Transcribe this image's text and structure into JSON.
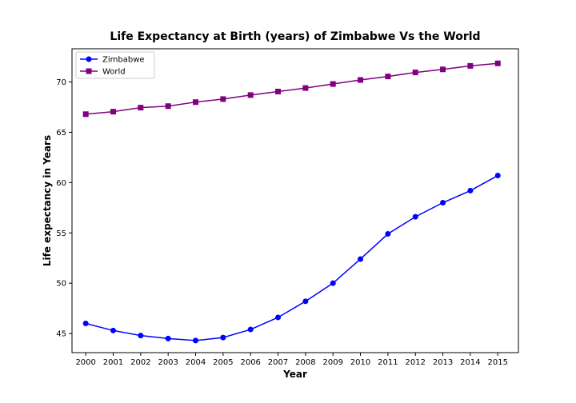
{
  "chart_data": {
    "type": "line",
    "title": "Life Expectancy at Birth (years) of Zimbabwe Vs the World",
    "xlabel": "Year",
    "ylabel": "Life expectancy in Years",
    "x": [
      2000,
      2001,
      2002,
      2003,
      2004,
      2005,
      2006,
      2007,
      2008,
      2009,
      2010,
      2011,
      2012,
      2013,
      2014,
      2015
    ],
    "x_tick_labels": [
      "2000",
      "2001",
      "2002",
      "2003",
      "2004",
      "2005",
      "2006",
      "2007",
      "2008",
      "2009",
      "2010",
      "2011",
      "2012",
      "2013",
      "2014",
      "2015"
    ],
    "y_ticks": [
      45,
      50,
      55,
      60,
      65,
      70
    ],
    "y_tick_labels": [
      "45",
      "50",
      "55",
      "60",
      "65",
      "70"
    ],
    "xlim": [
      1999.5,
      2015.75
    ],
    "ylim": [
      43.1,
      73.3
    ],
    "grid": false,
    "legend_position": "top-left",
    "series": [
      {
        "name": "Zimbabwe",
        "color": "#0000ff",
        "marker": "circle",
        "values": [
          46.0,
          45.3,
          44.8,
          44.5,
          44.3,
          44.6,
          45.4,
          46.6,
          48.2,
          50.0,
          52.4,
          54.9,
          56.6,
          58.0,
          59.2,
          60.7
        ]
      },
      {
        "name": "World",
        "color": "#800080",
        "marker": "square",
        "values": [
          66.8,
          67.05,
          67.45,
          67.6,
          68.0,
          68.3,
          68.7,
          69.05,
          69.4,
          69.8,
          70.2,
          70.55,
          70.95,
          71.25,
          71.6,
          71.85
        ]
      }
    ]
  }
}
